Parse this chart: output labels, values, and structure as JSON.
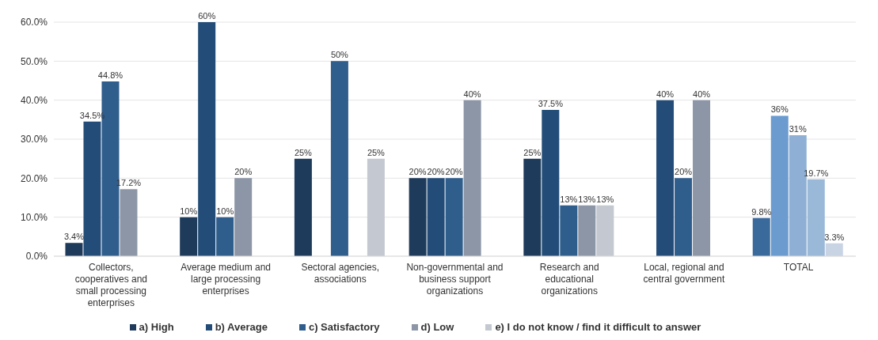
{
  "chart_data": {
    "type": "bar",
    "categories": [
      "Collectors, cooperatives and small processing enterprises",
      "Average medium and large processing enterprises",
      "Sectoral agencies, associations",
      "Non-governmental and business support organizations",
      "Research and educational organizations",
      "Local, regional and central government",
      "TOTAL"
    ],
    "series": [
      {
        "name": "a) High",
        "color": "#1f3b5c",
        "colors": [
          "#1f3b5c",
          "#1f3b5c",
          "#1f3b5c",
          "#1f3b5c",
          "#1f3b5c",
          "#1f3b5c",
          "#3a6a9c"
        ],
        "values": [
          3.4,
          10,
          25,
          20,
          25,
          null,
          9.8
        ],
        "value_labels": [
          "3.4%",
          "10%",
          "25%",
          "20%",
          "25%",
          null,
          "9.8%"
        ]
      },
      {
        "name": "b) Average",
        "color": "#234d78",
        "colors": [
          "#234d78",
          "#234d78",
          "#234d78",
          "#234d78",
          "#234d78",
          "#234d78",
          "#6b9bcf"
        ],
        "values": [
          34.5,
          60,
          null,
          20,
          37.5,
          40,
          36
        ],
        "value_labels": [
          "34.5%",
          "60%",
          null,
          "20%",
          "37.5%",
          "40%",
          "36%"
        ]
      },
      {
        "name": "c) Satisfactory",
        "color": "#2f5d8c",
        "colors": [
          "#2f5d8c",
          "#2f5d8c",
          "#2f5d8c",
          "#2f5d8c",
          "#2f5d8c",
          "#2f5d8c",
          "#8fb0d4"
        ],
        "values": [
          44.8,
          10,
          50,
          20,
          13,
          20,
          31
        ],
        "value_labels": [
          "44.8%",
          "10%",
          "50%",
          "20%",
          "13%",
          "20%",
          "31%"
        ]
      },
      {
        "name": "d) Low",
        "color": "#8c96a6",
        "colors": [
          "#8c96a6",
          "#8c96a6",
          "#8c96a6",
          "#8c96a6",
          "#8c96a6",
          "#8c96a6",
          "#9ab8d8"
        ],
        "values": [
          17.2,
          20,
          null,
          40,
          13,
          40,
          19.7
        ],
        "value_labels": [
          "17.2%",
          "20%",
          null,
          "40%",
          "13%",
          "40%",
          "19.7%"
        ]
      },
      {
        "name": "e) I do not know / find it difficult to answer",
        "color": "#c4c8d0",
        "colors": [
          "#c4c8d0",
          "#c4c8d0",
          "#c4c8d0",
          "#c4c8d0",
          "#c4c8d0",
          "#c4c8d0",
          "#c8d4e4"
        ],
        "values": [
          null,
          null,
          25,
          null,
          13,
          null,
          3.3
        ],
        "value_labels": [
          null,
          null,
          "25%",
          null,
          "13%",
          null,
          "3.3%"
        ]
      }
    ],
    "ylim": [
      0,
      60
    ],
    "yticks": [
      {
        "value": 0,
        "label": "0.0%"
      },
      {
        "value": 10,
        "label": "10.0%"
      },
      {
        "value": 20,
        "label": "20.0%"
      },
      {
        "value": 30,
        "label": "30.0%"
      },
      {
        "value": 40,
        "label": "40.0%"
      },
      {
        "value": 50,
        "label": "50.0%"
      },
      {
        "value": 60,
        "label": "60.0%"
      }
    ],
    "grid": "y",
    "legend": "bottom"
  }
}
